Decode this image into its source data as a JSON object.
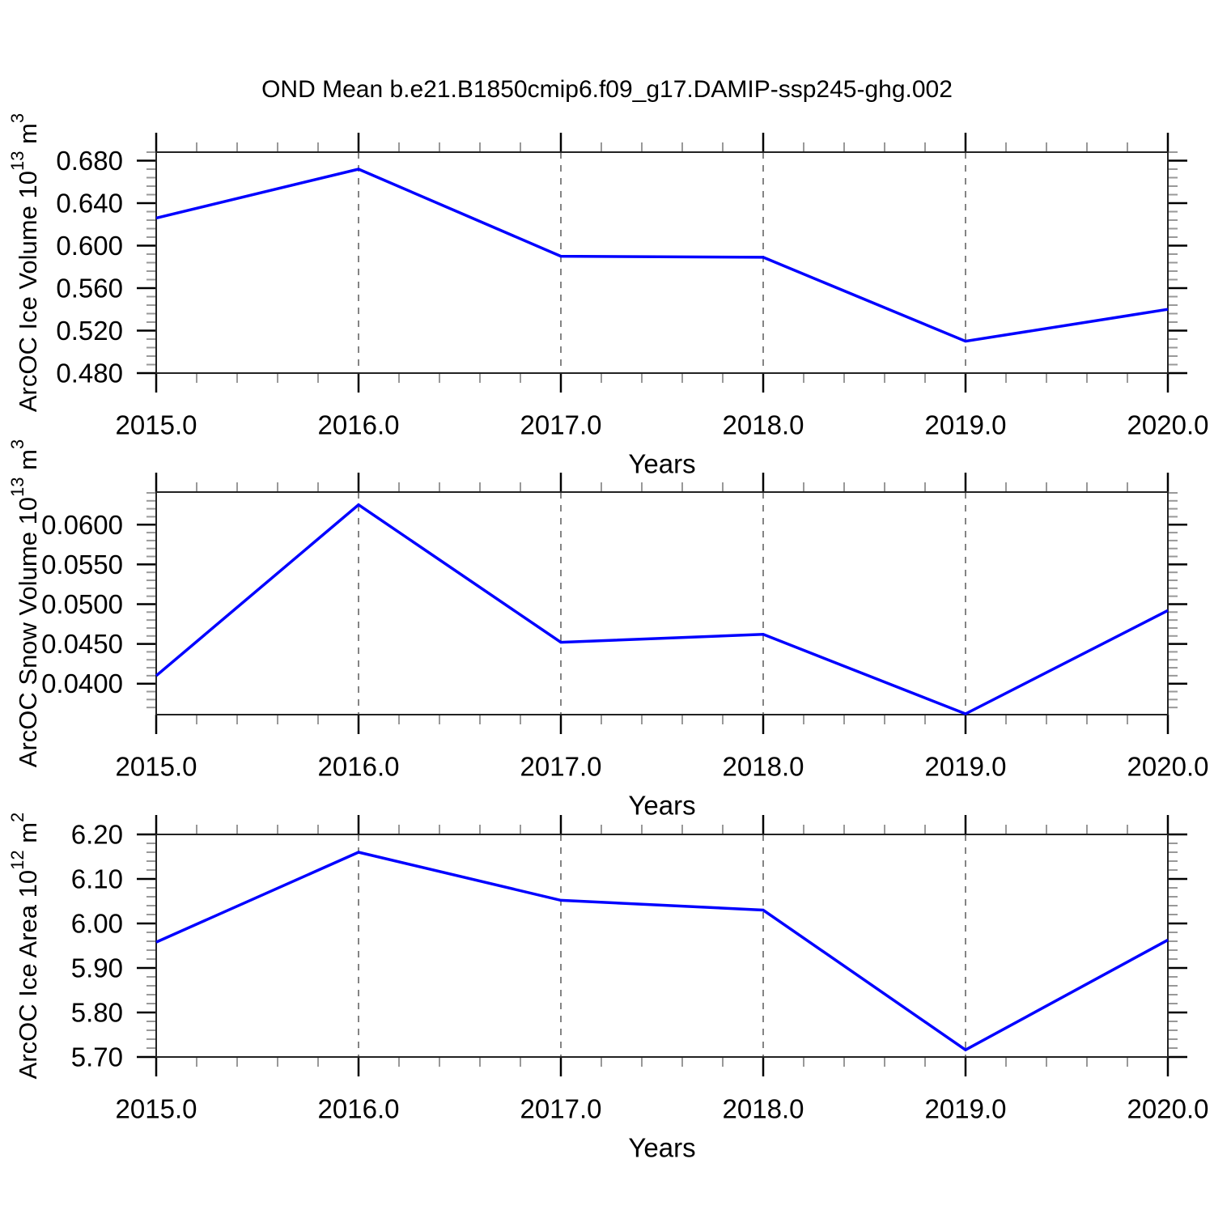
{
  "title": "OND Mean b.e21.B1850cmip6.f09_g17.DAMIP-ssp245-ghg.002",
  "line_color": "#0000ff",
  "axis_color": "#222222",
  "grid_color": "#777777",
  "minor_tick_color": "#999999",
  "x_axis": {
    "label": "Years",
    "min": 2015,
    "max": 2020,
    "major_step": 1,
    "minor_step": 0.2,
    "tick_decimals": 1,
    "tick_labels": [
      "2015.0",
      "2016.0",
      "2017.0",
      "2018.0",
      "2019.0",
      "2020.0"
    ],
    "grid_years": [
      2016,
      2017,
      2018,
      2019
    ]
  },
  "chart_data": [
    {
      "id": "ice-volume",
      "type": "line",
      "ylabel": {
        "text": "ArcOC Ice Volume 10",
        "exp": "13",
        "unit": " m",
        "unit_exp": "3"
      },
      "x": [
        2015,
        2016,
        2017,
        2018,
        2019,
        2020
      ],
      "values": [
        0.626,
        0.672,
        0.59,
        0.589,
        0.51,
        0.54
      ],
      "ylim": [
        0.48,
        0.688
      ],
      "y_major_start": 0.48,
      "y_major_step": 0.04,
      "y_minor_step": 0.008,
      "y_tick_decimals": 3,
      "y_tick_labels": [
        "0.480",
        "0.520",
        "0.560",
        "0.600",
        "0.640",
        "0.680"
      ],
      "xlabel": "Years",
      "grid": "vertical-dashed",
      "legend": "none"
    },
    {
      "id": "snow-volume",
      "type": "line",
      "ylabel": {
        "text": "ArcOC Snow Volume 10",
        "exp": "13",
        "unit": " m",
        "unit_exp": "3"
      },
      "x": [
        2015,
        2016,
        2017,
        2018,
        2019,
        2020
      ],
      "values": [
        0.041,
        0.0625,
        0.0452,
        0.0462,
        0.0362,
        0.0492
      ],
      "ylim": [
        0.0361,
        0.0641
      ],
      "y_major_start": 0.04,
      "y_major_step": 0.005,
      "y_minor_step": 0.001,
      "y_tick_decimals": 4,
      "y_tick_labels": [
        "0.0400",
        "0.0450",
        "0.0500",
        "0.0550",
        "0.0600"
      ],
      "xlabel": "Years",
      "grid": "vertical-dashed",
      "legend": "none"
    },
    {
      "id": "ice-area",
      "type": "line",
      "ylabel": {
        "text": "ArcOC Ice Area 10",
        "exp": "12",
        "unit": " m",
        "unit_exp": "2"
      },
      "x": [
        2015,
        2016,
        2017,
        2018,
        2019,
        2020
      ],
      "values": [
        5.958,
        6.16,
        6.052,
        6.03,
        5.716,
        5.963
      ],
      "ylim": [
        5.7,
        6.2
      ],
      "y_major_start": 5.7,
      "y_major_step": 0.1,
      "y_minor_step": 0.02,
      "y_tick_decimals": 2,
      "y_tick_labels": [
        "5.70",
        "5.80",
        "5.90",
        "6.00",
        "6.10",
        "6.20"
      ],
      "xlabel": "Years",
      "grid": "vertical-dashed",
      "legend": "none"
    }
  ]
}
